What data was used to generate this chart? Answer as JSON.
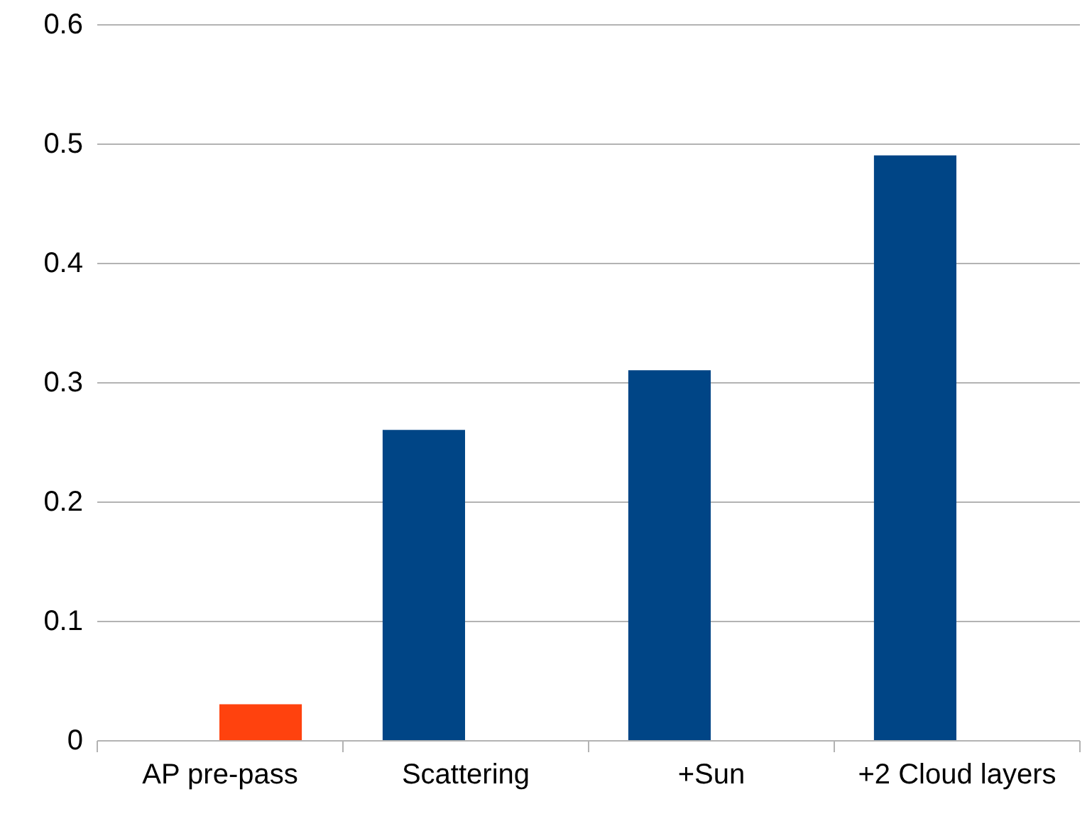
{
  "chart_data": {
    "type": "bar",
    "categories": [
      "AP pre-pass",
      "Scattering",
      "+Sun",
      "+2 Cloud layers"
    ],
    "series": [
      {
        "color": "#004586",
        "values": [
          null,
          0.26,
          0.31,
          0.49
        ]
      },
      {
        "color": "#ff420e",
        "values": [
          0.03,
          null,
          null,
          null
        ]
      }
    ],
    "ylim": [
      0,
      0.6
    ],
    "yticks": [
      0,
      0.1,
      0.2,
      0.3,
      0.4,
      0.5,
      0.6
    ],
    "grid": "y"
  }
}
